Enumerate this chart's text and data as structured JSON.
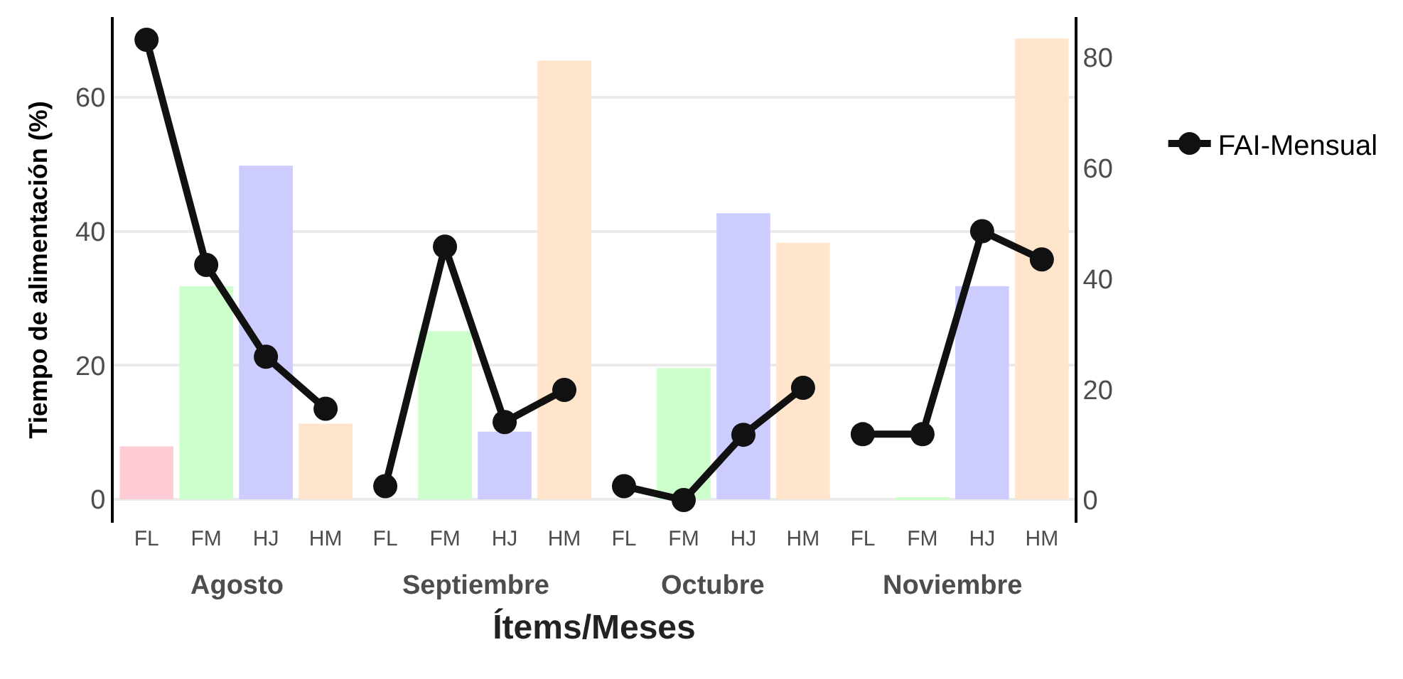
{
  "chart_data": {
    "type": "bar",
    "xlabel": "Ítems/Meses",
    "ylabel": "Tiempo de alimentación (%)",
    "annotations": [
      "Agosto",
      "Septiembre",
      "Octubre",
      "Noviembre"
    ],
    "categories": [
      "FL",
      "FM",
      "HJ",
      "HM",
      "FL",
      "FM",
      "HJ",
      "HM",
      "FL",
      "FM",
      "HJ",
      "HM",
      "FL",
      "FM",
      "HJ",
      "HM"
    ],
    "ylim": [
      -3.5,
      72
    ],
    "yticks": [
      0,
      20,
      40,
      60
    ],
    "y2lim": [
      -4.1,
      87.3
    ],
    "y2ticks": [
      0,
      20,
      40,
      60,
      80
    ],
    "grid": "y",
    "marker": "circle",
    "line_style": "solid",
    "legend": "right",
    "series": [
      {
        "colors": [
          "#ffccd5",
          "#ccffcc",
          "#ccccff",
          "#ffe5cc",
          "#ffccd5",
          "#ccffcc",
          "#ccccff",
          "#ffe5cc",
          "#ffccd5",
          "#ccffcc",
          "#ccccff",
          "#ffe5cc",
          "#ffccd5",
          "#ccffcc",
          "#ccccff",
          "#ffe5cc"
        ],
        "values": [
          7.9,
          31.8,
          49.8,
          11.3,
          0,
          25.1,
          10.1,
          65.5,
          0,
          19.6,
          42.7,
          38.3,
          0,
          0.3,
          31.8,
          68.8
        ]
      },
      {
        "type": "line",
        "name": "FAI-Mensual",
        "color": "#111111",
        "axis": "y2",
        "values": [
          83.2,
          42.5,
          25.9,
          16.5,
          null,
          null,
          null,
          null,
          null,
          null,
          null,
          null,
          null,
          null,
          null,
          null
        ]
      },
      {
        "type": "line",
        "color": "#111111",
        "axis": "y2",
        "values": [
          null,
          null,
          null,
          null,
          2.5,
          45.8,
          14.1,
          19.9,
          null,
          null,
          null,
          null,
          null,
          null,
          null,
          null
        ]
      },
      {
        "type": "line",
        "color": "#111111",
        "axis": "y2",
        "values": [
          null,
          null,
          null,
          null,
          null,
          null,
          null,
          null,
          2.5,
          0,
          11.8,
          20.3,
          null,
          null,
          null,
          null
        ]
      },
      {
        "type": "line",
        "color": "#111111",
        "axis": "y2",
        "values": [
          null,
          null,
          null,
          null,
          null,
          null,
          null,
          null,
          null,
          null,
          null,
          null,
          11.9,
          11.9,
          48.6,
          43.5
        ]
      }
    ]
  }
}
